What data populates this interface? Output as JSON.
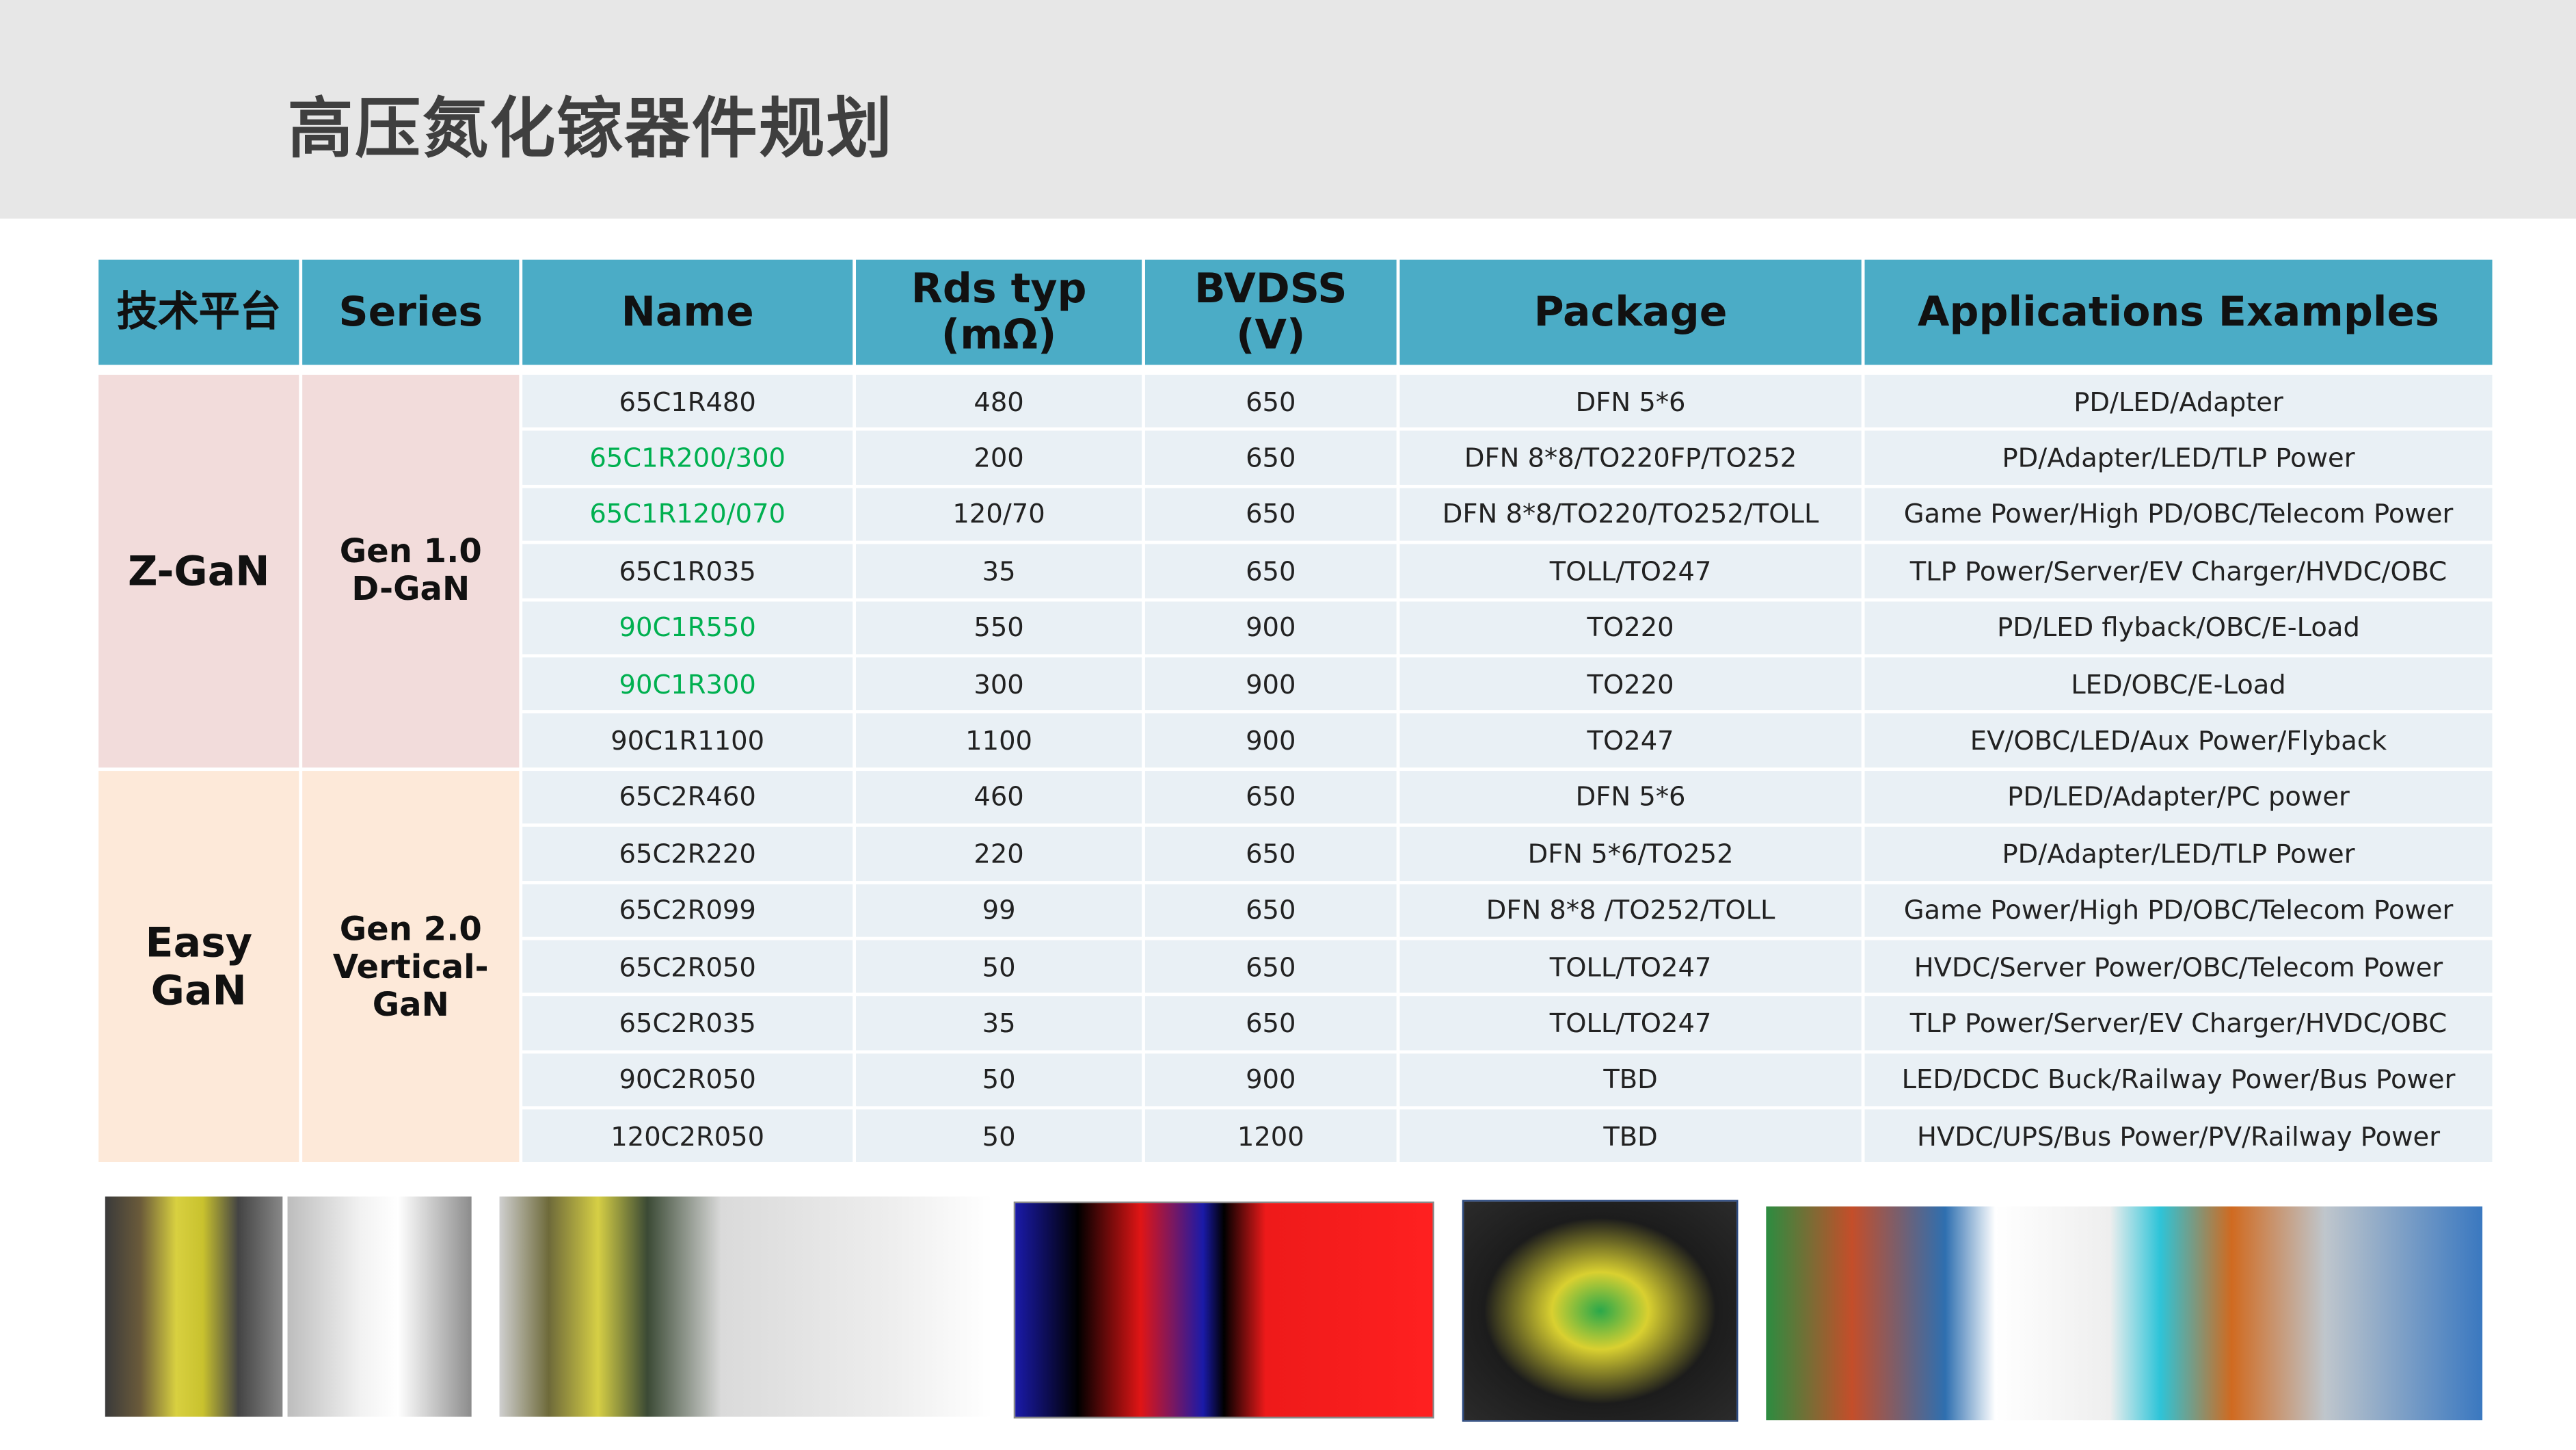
{
  "title": "高压氮化镓器件规划",
  "table": {
    "headers": [
      "技术平台",
      "Series",
      "Name",
      "Rds typ (mΩ)",
      "BVDSS (V)",
      "Package",
      "Applications Examples"
    ],
    "header_lines": {
      "rds": [
        "Rds typ",
        "(mΩ)"
      ],
      "bvdss": [
        "BVDSS",
        "(V)"
      ]
    },
    "groups": [
      {
        "platform": "Z-GaN",
        "series": [
          "Gen 1.0",
          "D-GaN"
        ],
        "bg": "#f2dcdb"
      },
      {
        "platform": "Easy GaN",
        "series": [
          "Gen 2.0",
          "Vertical-GaN"
        ],
        "bg": "#fde9d9"
      }
    ],
    "rows": [
      {
        "name": "65C1R480",
        "rds": "480",
        "bvdss": "650",
        "package": "DFN 5*6",
        "apps": "PD/LED/Adapter",
        "highlight": false
      },
      {
        "name": "65C1R200/300",
        "rds": "200",
        "bvdss": "650",
        "package": "DFN 8*8/TO220FP/TO252",
        "apps": "PD/Adapter/LED/TLP Power",
        "highlight": true
      },
      {
        "name": "65C1R120/070",
        "rds": "120/70",
        "bvdss": "650",
        "package": "DFN 8*8/TO220/TO252/TOLL",
        "apps": "Game Power/High PD/OBC/Telecom Power",
        "highlight": true
      },
      {
        "name": "65C1R035",
        "rds": "35",
        "bvdss": "650",
        "package": "TOLL/TO247",
        "apps": "TLP Power/Server/EV Charger/HVDC/OBC",
        "highlight": false
      },
      {
        "name": "90C1R550",
        "rds": "550",
        "bvdss": "900",
        "package": "TO220",
        "apps": "PD/LED flyback/OBC/E-Load",
        "highlight": true
      },
      {
        "name": "90C1R300",
        "rds": "300",
        "bvdss": "900",
        "package": "TO220",
        "apps": "LED/OBC/E-Load",
        "highlight": true
      },
      {
        "name": "90C1R1100",
        "rds": "1100",
        "bvdss": "900",
        "package": "TO247",
        "apps": "EV/OBC/LED/Aux Power/Flyback",
        "highlight": false
      },
      {
        "name": "65C2R460",
        "rds": "460",
        "bvdss": "650",
        "package": "DFN 5*6",
        "apps": "PD/LED/Adapter/PC power",
        "highlight": false
      },
      {
        "name": "65C2R220",
        "rds": "220",
        "bvdss": "650",
        "package": "DFN 5*6/TO252",
        "apps": "PD/Adapter/LED/TLP Power",
        "highlight": false
      },
      {
        "name": "65C2R099",
        "rds": "99",
        "bvdss": "650",
        "package": "DFN 8*8 /TO252/TOLL",
        "apps": "Game Power/High PD/OBC/Telecom Power",
        "highlight": false
      },
      {
        "name": "65C2R050",
        "rds": "50",
        "bvdss": "650",
        "package": "TOLL/TO247",
        "apps": "HVDC/Server Power/OBC/Telecom Power",
        "highlight": false
      },
      {
        "name": "65C2R035",
        "rds": "35",
        "bvdss": "650",
        "package": "TOLL/TO247",
        "apps": "TLP Power/Server/EV Charger/HVDC/OBC",
        "highlight": false
      },
      {
        "name": "90C2R050",
        "rds": "50",
        "bvdss": "900",
        "package": "TBD",
        "apps": "LED/DCDC Buck/Railway Power/Bus Power",
        "highlight": false
      },
      {
        "name": "120C2R050",
        "rds": "50",
        "bvdss": "1200",
        "package": "TBD",
        "apps": "HVDC/UPS/Bus Power/PV/Railway Power",
        "highlight": false
      }
    ]
  },
  "colors": {
    "header": "#4bacc6",
    "cell": "#e9f0f5",
    "highlight_text": "#00b050",
    "title_bar": "#e7e7e7"
  },
  "images": [
    "charger-product-photo",
    "adapter-product-photo",
    "pcb-layout-image",
    "green-pcb-photo",
    "power-supply-board-photo"
  ]
}
